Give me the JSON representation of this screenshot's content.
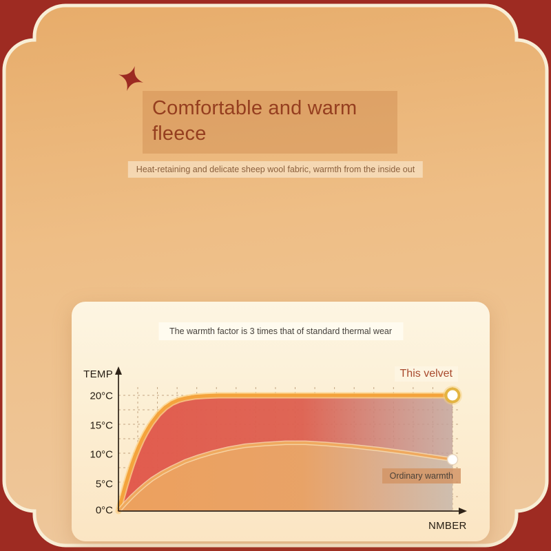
{
  "frame": {
    "background_color": "#9e2b22",
    "outline_color": "#f8eed6",
    "shape": "scalloped-plaque"
  },
  "fabric": {
    "base_color": "#eab678",
    "highlight_color": "#fdf7ea"
  },
  "header": {
    "ornament_icon": "four-point-star",
    "ornament_color": "#9c2a22",
    "title": "Comfortable and warm fleece",
    "title_color": "#953e1f",
    "subtitle": "Heat-retaining and delicate sheep wool fabric, warmth from the inside out"
  },
  "chart_data": {
    "type": "area",
    "title": "The warmth factor is 3 times that of standard thermal wear",
    "xlabel": "NMBER",
    "ylabel": "TEMP",
    "xlim": [
      0,
      100
    ],
    "ylim": [
      0,
      22.5
    ],
    "y_tick_labels": [
      "20°C",
      "15°C",
      "10°C",
      "5°C",
      "0°C"
    ],
    "y_tick_values": [
      20,
      15,
      10,
      5,
      0
    ],
    "grid": {
      "style": "dashed",
      "y_step": 2.5,
      "x_divisions": 16,
      "color": "rgba(148,103,62,0.55)"
    },
    "legend_position": "inline-end-of-line",
    "axis_color": "#2e2318",
    "series": [
      {
        "name": "This velvet",
        "line_color": "#f4a33c",
        "halo_color": "#fbd389",
        "fill_start": "#e1574a",
        "fill_end": "#c1a39d",
        "label_color": "#a8492c",
        "marker": "ringed-dot",
        "points": [
          [
            0,
            0
          ],
          [
            1,
            2.2
          ],
          [
            2,
            4.3
          ],
          [
            3,
            6.2
          ],
          [
            4,
            8
          ],
          [
            5,
            9.6
          ],
          [
            6,
            11
          ],
          [
            7,
            12.3
          ],
          [
            8,
            13.4
          ],
          [
            9,
            14.4
          ],
          [
            10,
            15.3
          ],
          [
            12,
            16.8
          ],
          [
            14,
            17.9
          ],
          [
            16,
            18.7
          ],
          [
            18,
            19.2
          ],
          [
            20,
            19.5
          ],
          [
            23,
            19.8
          ],
          [
            26,
            19.9
          ],
          [
            30,
            20
          ],
          [
            100,
            20
          ]
        ]
      },
      {
        "name": "Ordinary warmth",
        "line_color": "#efa95e",
        "halo_color": "#f9ddb0",
        "fill_start": "#eda25e",
        "fill_end": "#cfc0b0",
        "label_color": "#4a4138",
        "label_bg": "#d29566",
        "marker": "dot",
        "points": [
          [
            0,
            0
          ],
          [
            2,
            1.3
          ],
          [
            4,
            2.5
          ],
          [
            6,
            3.6
          ],
          [
            8,
            4.6
          ],
          [
            10,
            5.5
          ],
          [
            13,
            6.6
          ],
          [
            16,
            7.5
          ],
          [
            20,
            8.6
          ],
          [
            24,
            9.4
          ],
          [
            28,
            10.1
          ],
          [
            33,
            10.8
          ],
          [
            38,
            11.3
          ],
          [
            44,
            11.6
          ],
          [
            50,
            11.8
          ],
          [
            56,
            11.8
          ],
          [
            62,
            11.6
          ],
          [
            70,
            11.2
          ],
          [
            78,
            10.7
          ],
          [
            86,
            10.1
          ],
          [
            93,
            9.5
          ],
          [
            100,
            8.9
          ]
        ]
      }
    ]
  }
}
